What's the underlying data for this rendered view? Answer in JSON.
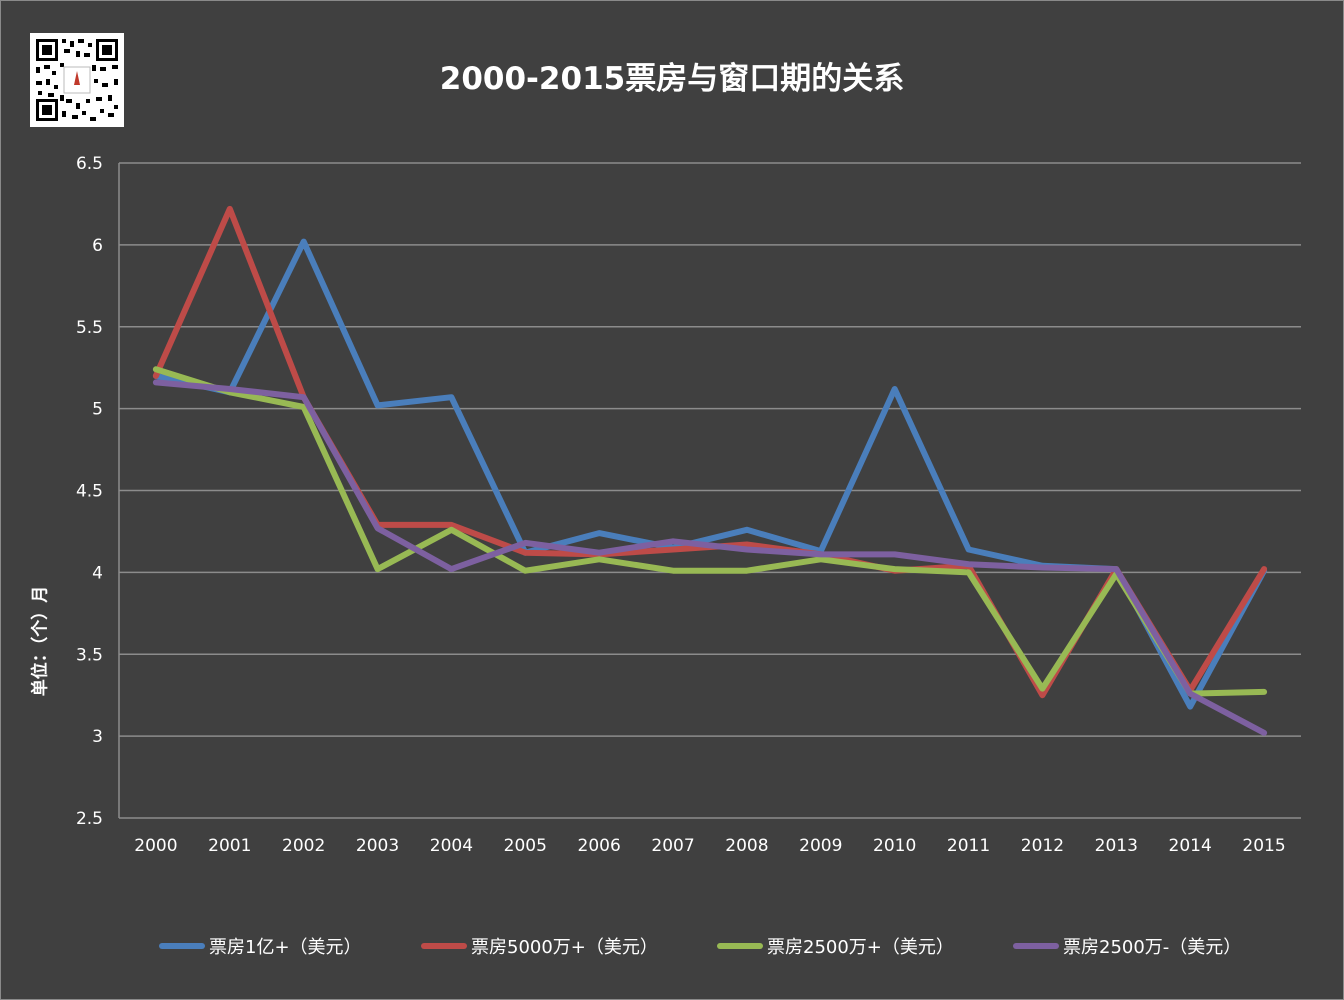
{
  "chart_data": {
    "type": "line",
    "title": "2000-2015票房与窗口期的关系",
    "ylabel": "单位：（个）月",
    "xlabel": "",
    "ylim": [
      2.5,
      6.5
    ],
    "yticks": [
      "2.5",
      "3",
      "3.5",
      "4",
      "4.5",
      "5",
      "5.5",
      "6",
      "6.5"
    ],
    "grid": true,
    "legend_position": "bottom",
    "categories": [
      "2000",
      "2001",
      "2002",
      "2003",
      "2004",
      "2005",
      "2006",
      "2007",
      "2008",
      "2009",
      "2010",
      "2011",
      "2012",
      "2013",
      "2014",
      "2015"
    ],
    "series": [
      {
        "name": "票房1亿+（美元）",
        "color": "#4a7ebb",
        "values": [
          5.2,
          5.1,
          6.02,
          5.02,
          5.07,
          4.12,
          4.24,
          4.15,
          4.26,
          4.13,
          5.12,
          4.14,
          4.04,
          4.02,
          3.18,
          4.01
        ]
      },
      {
        "name": "票房5000万+（美元）",
        "color": "#be4b48",
        "values": [
          5.2,
          6.22,
          5.07,
          4.29,
          4.29,
          4.12,
          4.11,
          4.14,
          4.17,
          4.11,
          4.01,
          4.04,
          3.25,
          4.02,
          3.28,
          4.02
        ]
      },
      {
        "name": "票房2500万+（美元）",
        "color": "#98b954",
        "values": [
          5.24,
          5.1,
          5.01,
          4.02,
          4.26,
          4.01,
          4.08,
          4.01,
          4.01,
          4.08,
          4.02,
          4.0,
          3.29,
          3.99,
          3.26,
          3.27
        ]
      },
      {
        "name": "票房2500万-（美元）",
        "color": "#7d60a0",
        "values": [
          5.16,
          5.12,
          5.07,
          4.27,
          4.02,
          4.18,
          4.12,
          4.19,
          4.14,
          4.11,
          4.11,
          4.05,
          4.03,
          4.02,
          3.26,
          3.02
        ]
      }
    ]
  },
  "icons": {
    "qr": "qr-code-icon"
  },
  "colors": {
    "background": "#404040",
    "grid": "#8c8c8c",
    "text": "#ffffff"
  }
}
